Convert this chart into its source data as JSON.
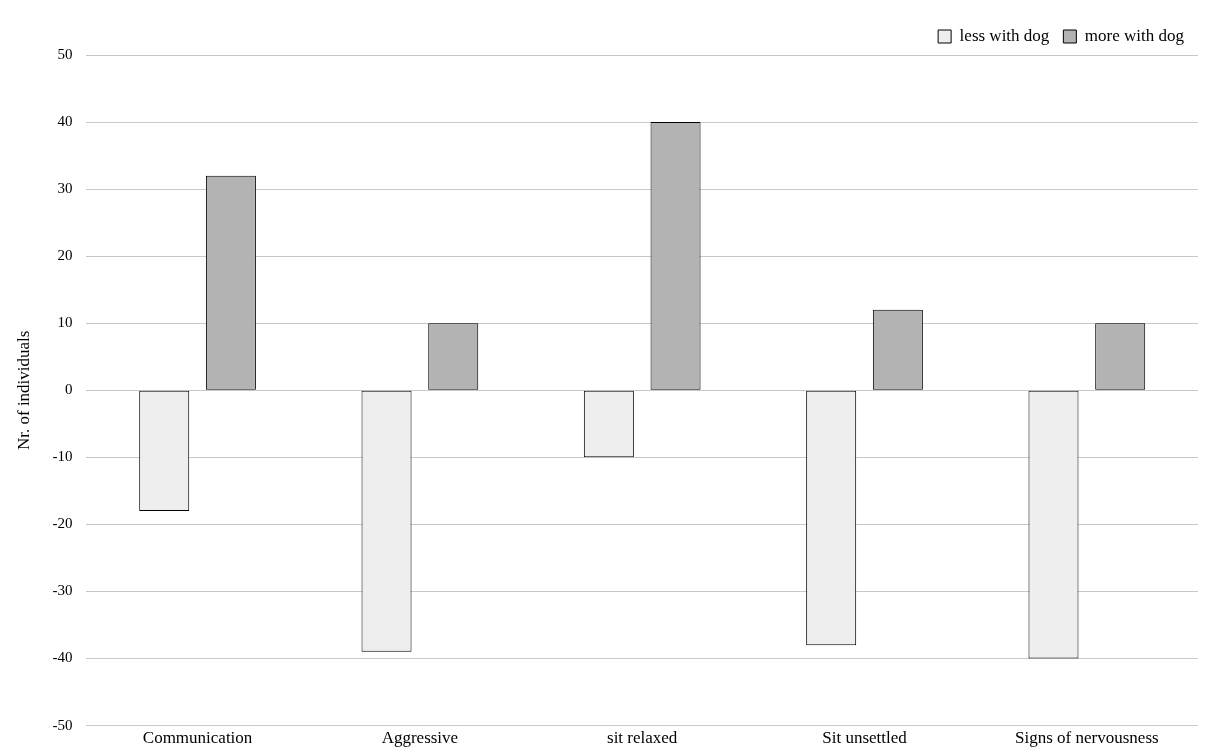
{
  "chart_data": {
    "type": "bar",
    "ylabel": "Nr. of individuals",
    "categories": [
      "Communication",
      "Aggressive",
      "sit relaxed",
      "Sit unsettled",
      "Signs of nervousness"
    ],
    "series": [
      {
        "name": "less with dog",
        "color": "#eeeeee",
        "values": [
          -18,
          -39,
          -10,
          -38,
          -40
        ]
      },
      {
        "name": "more with dog",
        "color": "#b3b3b3",
        "values": [
          32,
          10,
          40,
          12,
          10
        ]
      }
    ],
    "ylim": [
      -50,
      50
    ],
    "yticks": [
      -50,
      -40,
      -30,
      -20,
      -10,
      0,
      10,
      20,
      30,
      40,
      50
    ],
    "grid": "y",
    "legend": "top right"
  }
}
